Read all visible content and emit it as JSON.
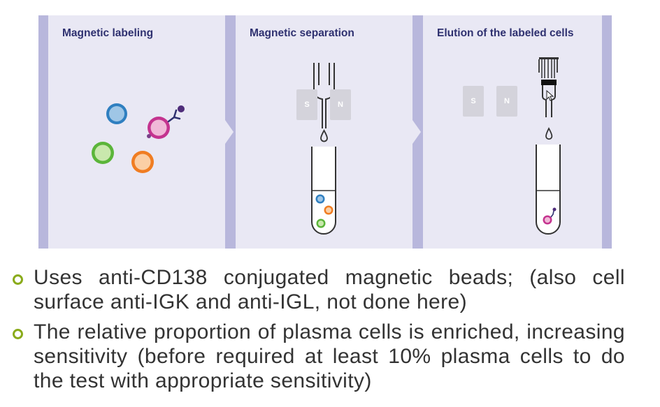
{
  "panels": [
    {
      "title": "Magnetic labeling"
    },
    {
      "title": "Magnetic separation"
    },
    {
      "title": "Elution of the labeled cells"
    }
  ],
  "magnets": {
    "south": "S",
    "north": "N"
  },
  "colors": {
    "figure_bg": "#e9e8f4",
    "divider": "#b8b7dc",
    "title": "#2f3170",
    "bullet": "#8aab1b",
    "cell_blue": "#2f7fc0",
    "cell_green": "#5bb53a",
    "cell_orange": "#f07d22",
    "cell_pink": "#c4338f"
  },
  "bullets": [
    {
      "text": "Uses anti-CD138 conjugated magnetic beads; (also cell surface anti-IGK and anti-IGL, not done here)"
    },
    {
      "text": "The relative proportion of plasma cells is enriched, increasing sensitivity (before required at least 10% plasma cells to do the test with appropriate sensitivity)"
    }
  ]
}
